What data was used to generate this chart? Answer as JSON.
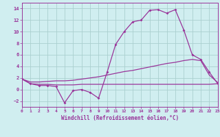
{
  "xlabel": "Windchill (Refroidissement éolien,°C)",
  "bg_color": "#d0eef0",
  "grid_color": "#aacfcf",
  "line_color": "#993399",
  "x": [
    0,
    1,
    2,
    3,
    4,
    5,
    6,
    7,
    8,
    9,
    10,
    11,
    12,
    13,
    14,
    15,
    16,
    17,
    18,
    19,
    20,
    21,
    22,
    23
  ],
  "y_main": [
    1.8,
    1.0,
    0.7,
    0.7,
    0.5,
    -2.3,
    -0.2,
    0.0,
    -0.5,
    -1.5,
    3.0,
    7.8,
    10.0,
    11.7,
    12.0,
    13.7,
    13.8,
    13.2,
    13.8,
    10.3,
    6.0,
    5.2,
    3.0,
    1.0
  ],
  "y_line1": [
    1.8,
    1.3,
    1.3,
    1.4,
    1.5,
    1.5,
    1.6,
    1.8,
    2.0,
    2.2,
    2.5,
    2.8,
    3.1,
    3.3,
    3.6,
    3.9,
    4.2,
    4.5,
    4.7,
    5.0,
    5.2,
    5.0,
    2.5,
    1.2
  ],
  "y_line2": [
    1.8,
    1.0,
    0.9,
    0.9,
    0.8,
    0.8,
    0.8,
    0.9,
    0.9,
    0.9,
    0.9,
    0.9,
    0.9,
    0.9,
    0.9,
    0.9,
    0.9,
    0.9,
    0.9,
    0.9,
    0.9,
    0.9,
    0.9,
    1.0
  ],
  "ylim": [
    -3,
    15
  ],
  "xlim": [
    0,
    23
  ],
  "yticks": [
    -2,
    0,
    2,
    4,
    6,
    8,
    10,
    12,
    14
  ],
  "xticks": [
    0,
    1,
    2,
    3,
    4,
    5,
    6,
    7,
    8,
    9,
    10,
    11,
    12,
    13,
    14,
    15,
    16,
    17,
    18,
    19,
    20,
    21,
    22,
    23
  ]
}
